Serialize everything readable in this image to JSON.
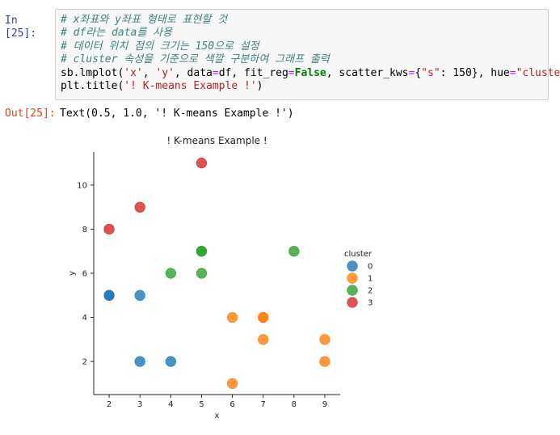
{
  "cell_in": {
    "prompt": "In [25]:",
    "comments": [
      "# x좌표와 y좌표 형태로 표현할 것",
      "# df라는 data를 사용",
      "# 데이터 위치 점의 크기는 150으로 설정",
      "# cluster 속성을 기준으로 색깔 구분하여 그래프 출력"
    ],
    "code_line1": {
      "p1": "sb.lmplot(",
      "s1": "'x'",
      "p2": ", ",
      "s2": "'y'",
      "p3": ", data",
      "op1": "=",
      "p4": "df, fit_reg",
      "op2": "=",
      "kw": "False",
      "p5": ", scatter_kws",
      "op3": "=",
      "p6": "{",
      "s3": "\"s\"",
      "p7": ": 150}, hue",
      "op4": "=",
      "s4": "\"cluster\"",
      "p8": ")"
    },
    "code_line2": {
      "p1": "plt.title(",
      "s1": "'! K-means Example !'",
      "p2": ")"
    }
  },
  "cell_out": {
    "prompt": "Out[25]:",
    "text": "Text(0.5, 1.0, '! K-means Example !')"
  },
  "chart_data": {
    "type": "scatter",
    "title": "! K-means Example !",
    "xlabel": "x",
    "ylabel": "y",
    "xlim": [
      1.5,
      9.5
    ],
    "ylim": [
      0.5,
      11.5
    ],
    "xticks": [
      2,
      3,
      4,
      5,
      6,
      7,
      8,
      9
    ],
    "yticks": [
      2,
      4,
      6,
      8,
      10
    ],
    "grid": false,
    "legend_title": "cluster",
    "legend_position": "right",
    "series": [
      {
        "name": "0",
        "color": "#1f77b4",
        "points": [
          [
            2,
            5
          ],
          [
            2,
            5
          ],
          [
            3,
            5
          ],
          [
            3,
            2
          ],
          [
            4,
            2
          ]
        ]
      },
      {
        "name": "1",
        "color": "#ff7f0e",
        "points": [
          [
            6,
            4
          ],
          [
            7,
            4
          ],
          [
            7,
            4
          ],
          [
            7,
            3
          ],
          [
            6,
            1
          ],
          [
            9,
            3
          ],
          [
            9,
            2
          ]
        ]
      },
      {
        "name": "2",
        "color": "#2ca02c",
        "points": [
          [
            4,
            6
          ],
          [
            5,
            7
          ],
          [
            5,
            7
          ],
          [
            5,
            6
          ],
          [
            8,
            7
          ]
        ]
      },
      {
        "name": "3",
        "color": "#d62728",
        "points": [
          [
            2,
            8
          ],
          [
            3,
            9
          ],
          [
            5,
            11
          ]
        ]
      }
    ]
  }
}
